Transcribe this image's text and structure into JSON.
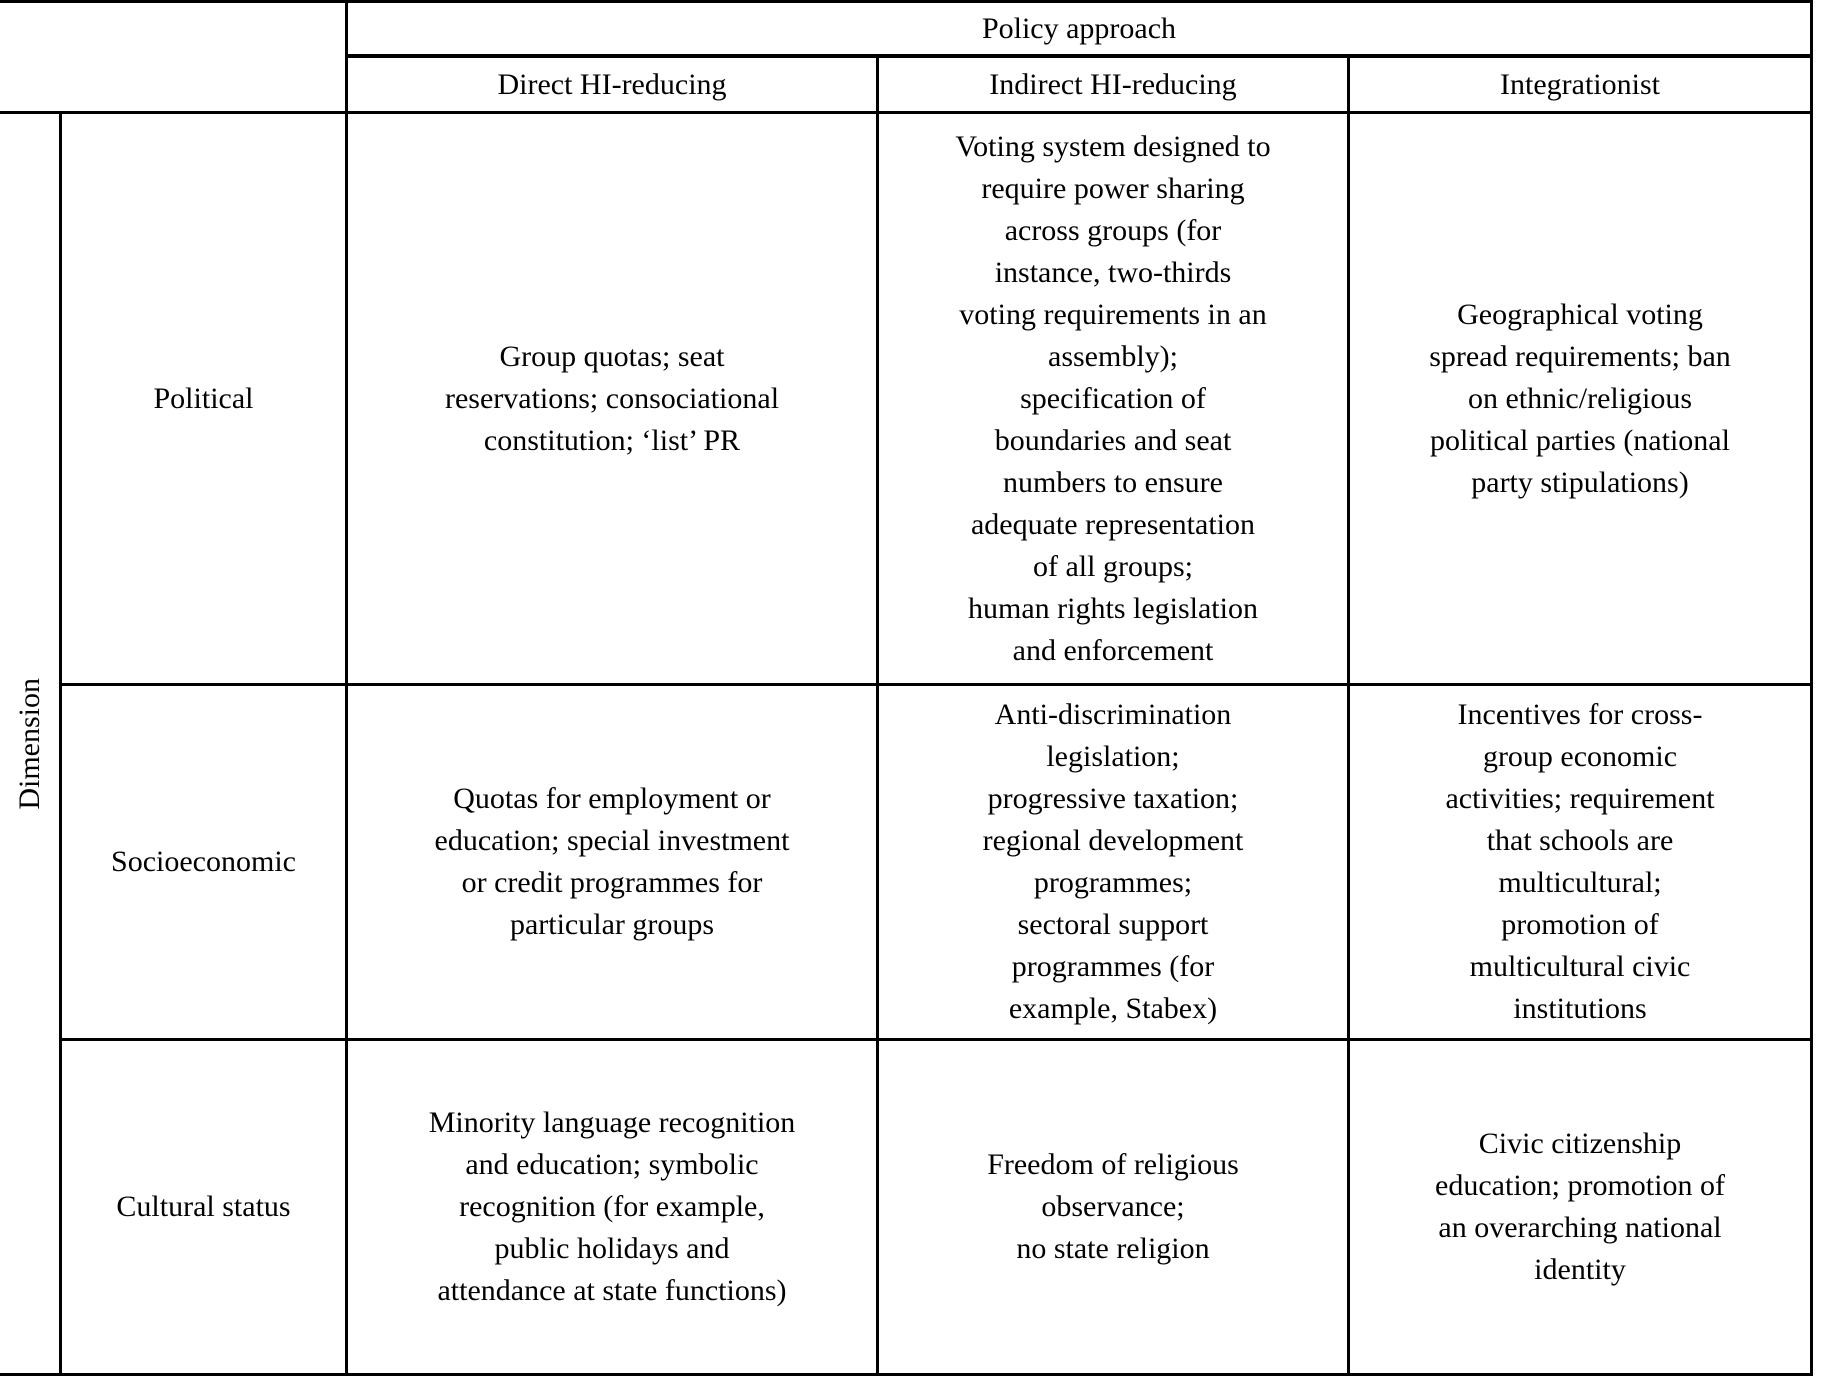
{
  "table": {
    "column_group_header": "Policy approach",
    "row_group_header": "Dimension",
    "column_headers": {
      "direct": "Direct HI-reducing",
      "indirect": "Indirect HI-reducing",
      "integrationist": "Integrationist"
    },
    "rows": [
      {
        "label": "Political",
        "direct": "Group quotas; seat\nreservations; consociational\nconstitution; ‘list’ PR",
        "indirect": "Voting system designed to\nrequire power sharing\nacross groups (for\ninstance, two-thirds\nvoting requirements in an\nassembly);\nspecification of\nboundaries and seat\nnumbers to ensure\nadequate representation\nof all groups;\nhuman rights legislation\nand enforcement",
        "integrationist": "Geographical voting\nspread requirements; ban\non ethnic/religious\npolitical parties (national\nparty stipulations)"
      },
      {
        "label": "Socioeconomic",
        "direct": "Quotas for employment or\neducation; special investment\nor credit programmes for\nparticular groups",
        "indirect": "Anti-discrimination\nlegislation;\nprogressive taxation;\nregional development\nprogrammes;\nsectoral support\nprogrammes (for\nexample, Stabex)",
        "integrationist": "Incentives for cross-\ngroup economic\nactivities; requirement\nthat schools are\nmulticultural;\npromotion of\nmulticultural civic\ninstitutions"
      },
      {
        "label": "Cultural status",
        "direct": "Minority language recognition\nand education; symbolic\nrecognition (for example,\npublic holidays and\nattendance at state functions)",
        "indirect": "Freedom of religious\nobservance;\nno state religion",
        "integrationist": "Civic citizenship\neducation; promotion of\nan overarching national\nidentity"
      }
    ],
    "colors": {
      "border": "#000000",
      "text": "#000000",
      "background": "#ffffff"
    }
  }
}
